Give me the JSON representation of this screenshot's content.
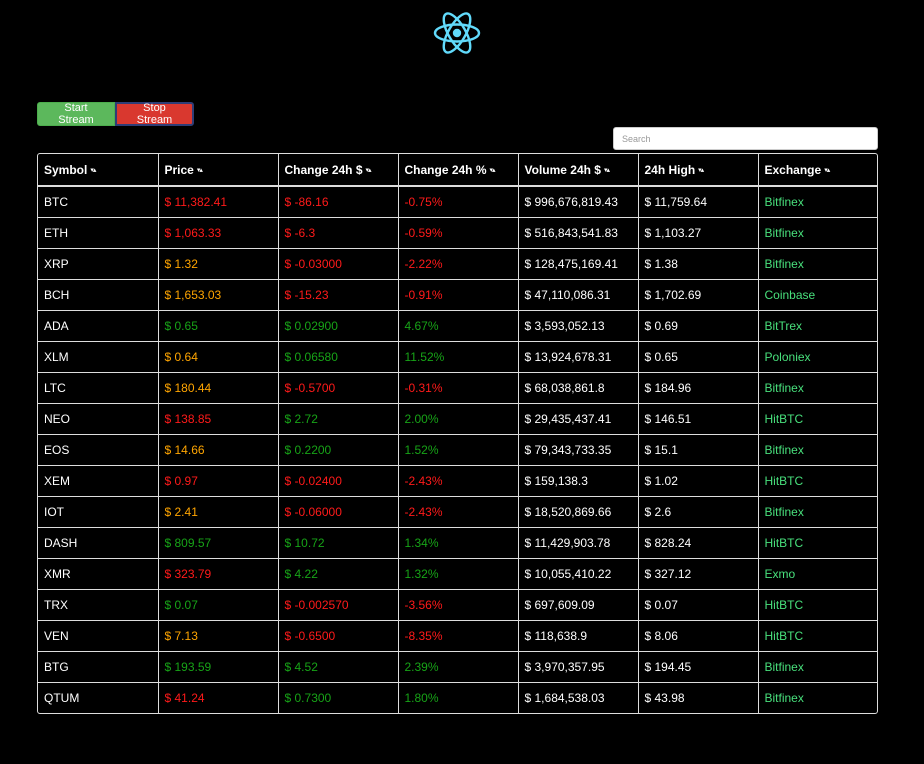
{
  "colors": {
    "red": "#ff1a1a",
    "green": "#17a317",
    "orange": "#ffa500",
    "exchange": "#48e07c",
    "logo": "#61dafb",
    "start_button": "#5cb85c",
    "stop_button": "#d9382f"
  },
  "logo": {
    "icon": "react-atom-icon"
  },
  "controls": {
    "start_label": "Start Stream",
    "stop_label": "Stop Stream",
    "search_placeholder": "Search"
  },
  "table": {
    "columns": [
      "Symbol",
      "Price",
      "Change 24h $",
      "Change 24h %",
      "Volume 24h $",
      "24h High",
      "Exchange"
    ],
    "sort_icon": "sort-arrows-icon",
    "rows": [
      {
        "symbol": "BTC",
        "price": "$ 11,382.41",
        "price_color": "red",
        "change": "$ -86.16",
        "change_pct": "-0.75%",
        "trend": "red",
        "volume": "$ 996,676,819.43",
        "high": "$ 11,759.64",
        "exchange": "Bitfinex"
      },
      {
        "symbol": "ETH",
        "price": "$ 1,063.33",
        "price_color": "red",
        "change": "$ -6.3",
        "change_pct": "-0.59%",
        "trend": "red",
        "volume": "$ 516,843,541.83",
        "high": "$ 1,103.27",
        "exchange": "Bitfinex"
      },
      {
        "symbol": "XRP",
        "price": "$ 1.32",
        "price_color": "orange",
        "change": "$ -0.03000",
        "change_pct": "-2.22%",
        "trend": "red",
        "volume": "$ 128,475,169.41",
        "high": "$ 1.38",
        "exchange": "Bitfinex"
      },
      {
        "symbol": "BCH",
        "price": "$ 1,653.03",
        "price_color": "orange",
        "change": "$ -15.23",
        "change_pct": "-0.91%",
        "trend": "red",
        "volume": "$ 47,110,086.31",
        "high": "$ 1,702.69",
        "exchange": "Coinbase"
      },
      {
        "symbol": "ADA",
        "price": "$ 0.65",
        "price_color": "green",
        "change": "$ 0.02900",
        "change_pct": "4.67%",
        "trend": "green",
        "volume": "$ 3,593,052.13",
        "high": "$ 0.69",
        "exchange": "BitTrex"
      },
      {
        "symbol": "XLM",
        "price": "$ 0.64",
        "price_color": "orange",
        "change": "$ 0.06580",
        "change_pct": "11.52%",
        "trend": "green",
        "volume": "$ 13,924,678.31",
        "high": "$ 0.65",
        "exchange": "Poloniex"
      },
      {
        "symbol": "LTC",
        "price": "$ 180.44",
        "price_color": "orange",
        "change": "$ -0.5700",
        "change_pct": "-0.31%",
        "trend": "red",
        "volume": "$ 68,038,861.8",
        "high": "$ 184.96",
        "exchange": "Bitfinex"
      },
      {
        "symbol": "NEO",
        "price": "$ 138.85",
        "price_color": "red",
        "change": "$ 2.72",
        "change_pct": "2.00%",
        "trend": "green",
        "volume": "$ 29,435,437.41",
        "high": "$ 146.51",
        "exchange": "HitBTC"
      },
      {
        "symbol": "EOS",
        "price": "$ 14.66",
        "price_color": "orange",
        "change": "$ 0.2200",
        "change_pct": "1.52%",
        "trend": "green",
        "volume": "$ 79,343,733.35",
        "high": "$ 15.1",
        "exchange": "Bitfinex"
      },
      {
        "symbol": "XEM",
        "price": "$ 0.97",
        "price_color": "red",
        "change": "$ -0.02400",
        "change_pct": "-2.43%",
        "trend": "red",
        "volume": "$ 159,138.3",
        "high": "$ 1.02",
        "exchange": "HitBTC"
      },
      {
        "symbol": "IOT",
        "price": "$ 2.41",
        "price_color": "orange",
        "change": "$ -0.06000",
        "change_pct": "-2.43%",
        "trend": "red",
        "volume": "$ 18,520,869.66",
        "high": "$ 2.6",
        "exchange": "Bitfinex"
      },
      {
        "symbol": "DASH",
        "price": "$ 809.57",
        "price_color": "green",
        "change": "$ 10.72",
        "change_pct": "1.34%",
        "trend": "green",
        "volume": "$ 11,429,903.78",
        "high": "$ 828.24",
        "exchange": "HitBTC"
      },
      {
        "symbol": "XMR",
        "price": "$ 323.79",
        "price_color": "red",
        "change": "$ 4.22",
        "change_pct": "1.32%",
        "trend": "green",
        "volume": "$ 10,055,410.22",
        "high": "$ 327.12",
        "exchange": "Exmo"
      },
      {
        "symbol": "TRX",
        "price": "$ 0.07",
        "price_color": "green",
        "change": "$ -0.002570",
        "change_pct": "-3.56%",
        "trend": "red",
        "volume": "$ 697,609.09",
        "high": "$ 0.07",
        "exchange": "HitBTC"
      },
      {
        "symbol": "VEN",
        "price": "$ 7.13",
        "price_color": "orange",
        "change": "$ -0.6500",
        "change_pct": "-8.35%",
        "trend": "red",
        "volume": "$ 118,638.9",
        "high": "$ 8.06",
        "exchange": "HitBTC"
      },
      {
        "symbol": "BTG",
        "price": "$ 193.59",
        "price_color": "green",
        "change": "$ 4.52",
        "change_pct": "2.39%",
        "trend": "green",
        "volume": "$ 3,970,357.95",
        "high": "$ 194.45",
        "exchange": "Bitfinex"
      },
      {
        "symbol": "QTUM",
        "price": "$ 41.24",
        "price_color": "red",
        "change": "$ 0.7300",
        "change_pct": "1.80%",
        "trend": "green",
        "volume": "$ 1,684,538.03",
        "high": "$ 43.98",
        "exchange": "Bitfinex"
      }
    ]
  }
}
